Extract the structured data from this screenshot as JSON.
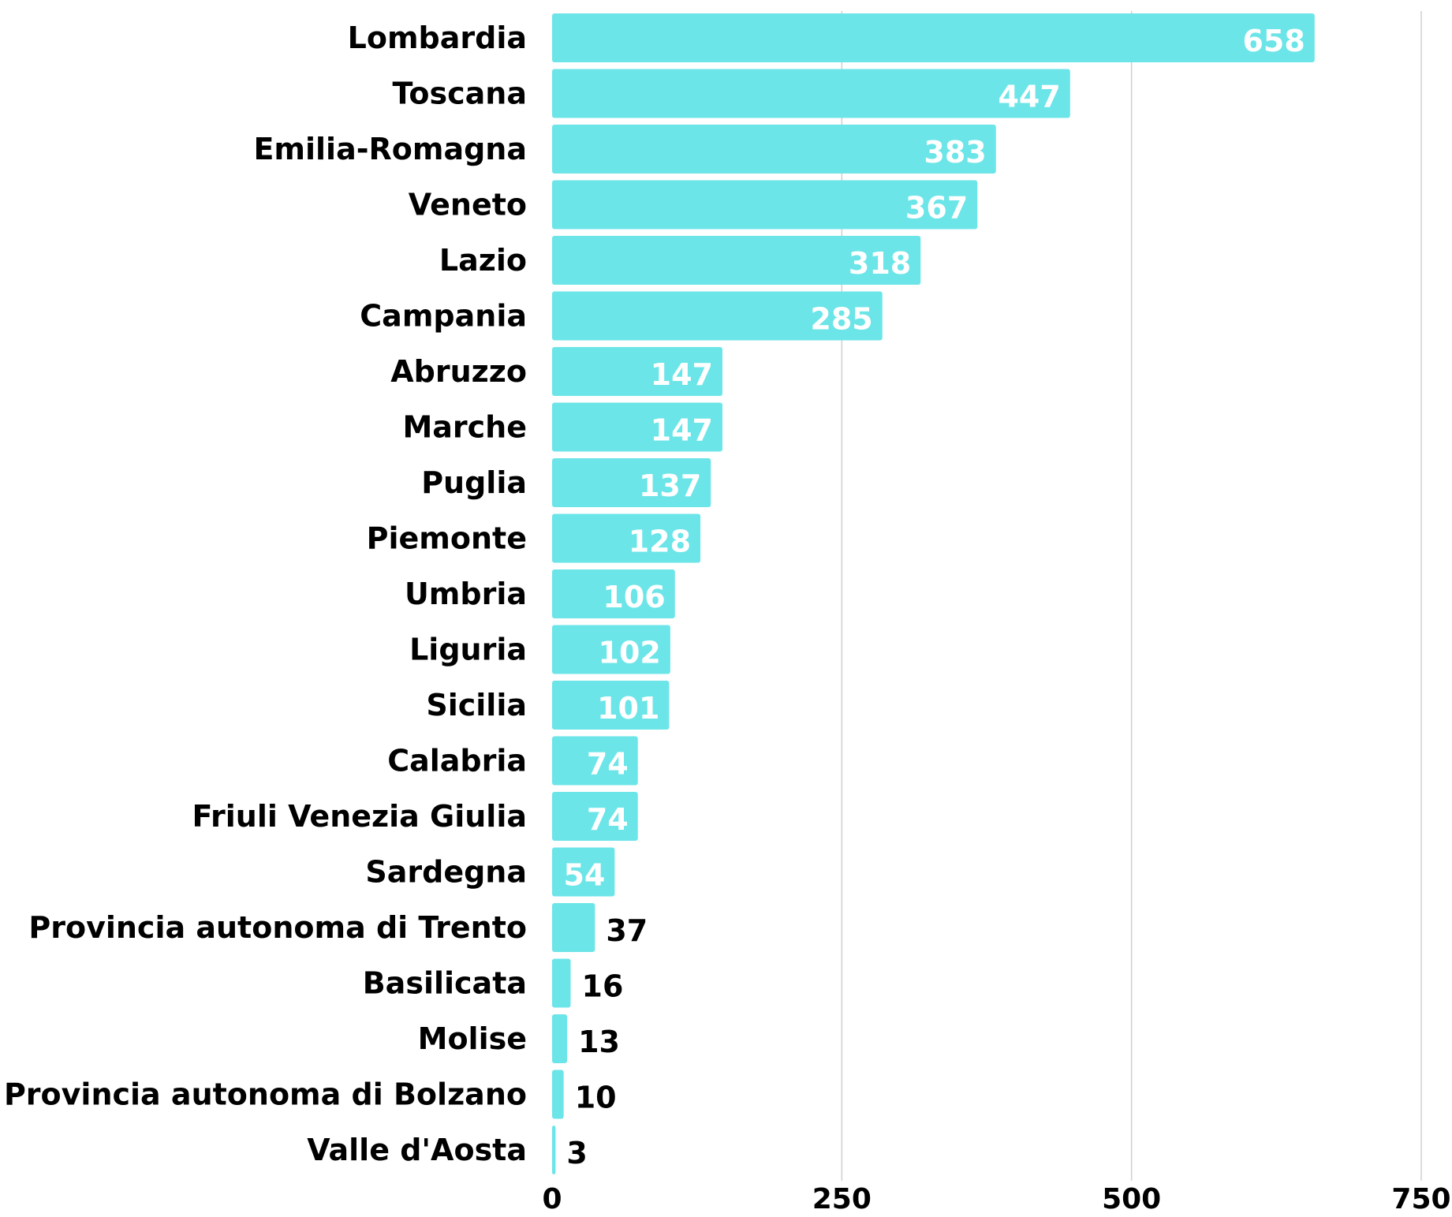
{
  "chart_data": {
    "type": "bar",
    "orientation": "horizontal",
    "categories": [
      "Lombardia",
      "Toscana",
      "Emilia-Romagna",
      "Veneto",
      "Lazio",
      "Campania",
      "Abruzzo",
      "Marche",
      "Puglia",
      "Piemonte",
      "Umbria",
      "Liguria",
      "Sicilia",
      "Calabria",
      "Friuli Venezia Giulia",
      "Sardegna",
      "Provincia autonoma di Trento",
      "Basilicata",
      "Molise",
      "Provincia autonoma di Bolzano",
      "Valle d'Aosta"
    ],
    "values": [
      658,
      447,
      383,
      367,
      318,
      285,
      147,
      147,
      137,
      128,
      106,
      102,
      101,
      74,
      74,
      54,
      37,
      16,
      13,
      10,
      3
    ],
    "xlim": [
      0,
      750
    ],
    "xticks": [
      0,
      250,
      500,
      750
    ],
    "xtick_labels": [
      "0",
      "250",
      "500",
      "750"
    ],
    "grid": "vertical",
    "colors": {
      "bar": "#6ce5e8",
      "label_inside": "#ffffff",
      "label_outside": "#000000",
      "grid": "#d0d0d0"
    }
  }
}
